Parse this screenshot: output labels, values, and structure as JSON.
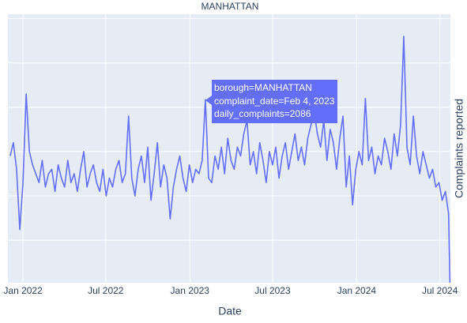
{
  "chart_data": {
    "type": "line",
    "title": "MANHATTAN",
    "x_label": "Date",
    "y_label": "Complaints reported",
    "x": [
      "2021-12-04",
      "2021-12-11",
      "2021-12-18",
      "2021-12-25",
      "2022-01-01",
      "2022-01-08",
      "2022-01-15",
      "2022-01-22",
      "2022-01-29",
      "2022-02-05",
      "2022-02-12",
      "2022-02-19",
      "2022-02-26",
      "2022-03-05",
      "2022-03-12",
      "2022-03-19",
      "2022-03-26",
      "2022-04-02",
      "2022-04-09",
      "2022-04-16",
      "2022-04-23",
      "2022-04-30",
      "2022-05-07",
      "2022-05-14",
      "2022-05-21",
      "2022-05-28",
      "2022-06-04",
      "2022-06-11",
      "2022-06-18",
      "2022-06-25",
      "2022-07-02",
      "2022-07-09",
      "2022-07-16",
      "2022-07-23",
      "2022-07-30",
      "2022-08-06",
      "2022-08-13",
      "2022-08-20",
      "2022-08-27",
      "2022-09-03",
      "2022-09-10",
      "2022-09-17",
      "2022-09-24",
      "2022-10-01",
      "2022-10-08",
      "2022-10-15",
      "2022-10-22",
      "2022-10-29",
      "2022-11-05",
      "2022-11-12",
      "2022-11-19",
      "2022-11-26",
      "2022-12-03",
      "2022-12-10",
      "2022-12-17",
      "2022-12-24",
      "2022-12-31",
      "2023-01-07",
      "2023-01-14",
      "2023-01-21",
      "2023-01-28",
      "2023-02-04",
      "2023-02-11",
      "2023-02-18",
      "2023-02-25",
      "2023-03-04",
      "2023-03-11",
      "2023-03-18",
      "2023-03-25",
      "2023-04-01",
      "2023-04-08",
      "2023-04-15",
      "2023-04-22",
      "2023-04-29",
      "2023-05-06",
      "2023-05-13",
      "2023-05-20",
      "2023-05-27",
      "2023-06-03",
      "2023-06-10",
      "2023-06-17",
      "2023-06-24",
      "2023-07-01",
      "2023-07-08",
      "2023-07-15",
      "2023-07-22",
      "2023-07-29",
      "2023-08-05",
      "2023-08-12",
      "2023-08-19",
      "2023-08-26",
      "2023-09-02",
      "2023-09-09",
      "2023-09-16",
      "2023-09-23",
      "2023-09-30",
      "2023-10-07",
      "2023-10-14",
      "2023-10-21",
      "2023-10-28",
      "2023-11-04",
      "2023-11-11",
      "2023-11-18",
      "2023-11-25",
      "2023-12-02",
      "2023-12-09",
      "2023-12-16",
      "2023-12-23",
      "2023-12-30",
      "2024-01-06",
      "2024-01-13",
      "2024-01-20",
      "2024-01-27",
      "2024-02-03",
      "2024-02-10",
      "2024-02-17",
      "2024-02-24",
      "2024-03-02",
      "2024-03-09",
      "2024-03-16",
      "2024-03-23",
      "2024-03-30",
      "2024-04-06",
      "2024-04-13",
      "2024-04-20",
      "2024-04-27",
      "2024-05-04",
      "2024-05-11",
      "2024-05-18",
      "2024-05-25",
      "2024-06-01",
      "2024-06-08",
      "2024-06-15",
      "2024-06-22",
      "2024-06-29",
      "2024-07-06",
      "2024-07-13",
      "2024-07-20",
      "2024-07-23"
    ],
    "series": [
      {
        "name": "MANHATTAN",
        "color": "#636efa",
        "values": [
          1450,
          1600,
          1300,
          620,
          1150,
          2150,
          1500,
          1350,
          1250,
          1150,
          1400,
          1100,
          1250,
          1300,
          1050,
          1350,
          1200,
          1100,
          1400,
          1150,
          1250,
          1050,
          1300,
          1500,
          1100,
          1250,
          1350,
          1150,
          1050,
          1300,
          1000,
          1200,
          1100,
          1300,
          1400,
          1150,
          1250,
          1900,
          1200,
          1000,
          1300,
          1450,
          1150,
          1550,
          950,
          1250,
          1600,
          1100,
          1350,
          1200,
          740,
          1100,
          1300,
          1450,
          1200,
          1050,
          1350,
          1150,
          1300,
          1250,
          1400,
          2086,
          1200,
          1150,
          1450,
          1300,
          1550,
          1250,
          1650,
          1400,
          1300,
          1550,
          1450,
          1700,
          1850,
          1350,
          1500,
          1250,
          1600,
          1400,
          1150,
          1500,
          1350,
          1550,
          1200,
          1450,
          1600,
          1300,
          1500,
          1700,
          1400,
          1550,
          1350,
          1650,
          1800,
          1950,
          1700,
          1550,
          1850,
          1400,
          1750,
          1600,
          1300,
          1650,
          1900,
          1100,
          1450,
          900,
          1300,
          1500,
          1350,
          2100,
          1400,
          1550,
          1250,
          1450,
          1350,
          1650,
          1500,
          1300,
          1700,
          1450,
          1800,
          2800,
          1550,
          1350,
          1900,
          1450,
          1250,
          1500,
          1350,
          1200,
          1300,
          1100,
          1150,
          950,
          1050,
          800,
          20
        ]
      }
    ],
    "xlim": [
      "2021-11-29",
      "2024-07-24"
    ],
    "xticks": [
      {
        "value": "2022-01-01",
        "label": "Jan 2022"
      },
      {
        "value": "2022-07-01",
        "label": "Jul 2022"
      },
      {
        "value": "2023-01-01",
        "label": "Jan 2023"
      },
      {
        "value": "2023-07-01",
        "label": "Jul 2023"
      },
      {
        "value": "2024-01-01",
        "label": "Jan 2024"
      },
      {
        "value": "2024-07-01",
        "label": "Jul 2024"
      }
    ],
    "ylim": [
      20,
      3050
    ],
    "yticks": [
      500,
      1000,
      1500,
      2000,
      2500,
      3000
    ],
    "grid": true,
    "tooltip": [
      "borough=MANHATTAN",
      "complaint_date=Feb 4, 2023",
      "daily_complaints=2086"
    ]
  }
}
